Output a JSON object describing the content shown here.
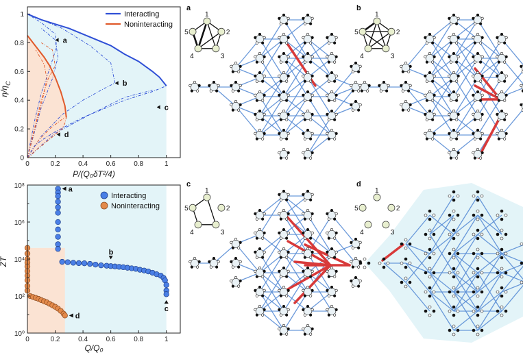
{
  "chart_data": [
    {
      "type": "line",
      "panel": "top-left",
      "xlabel": "P/(Q₀δT²/4)",
      "ylabel": "η/η",
      "ylabel_sub": "C",
      "xlim": [
        0,
        1.1
      ],
      "ylim": [
        0,
        1.05
      ],
      "xticks": [
        "0",
        "0.2",
        "0.4",
        "0.6",
        "0.8",
        "1"
      ],
      "yticks": [
        "0",
        "0.2",
        "0.4",
        "0.6",
        "0.8",
        "1"
      ],
      "legend_position": "top-right",
      "colors": {
        "interacting": "#2f4fd6",
        "noninteracting": "#e05a2b",
        "shade_interacting": "#e3f4f8",
        "shade_noninteracting": "#fbe3d3"
      },
      "series": [
        {
          "name": "Interacting",
          "lower": [
            [
              0,
              0
            ],
            [
              0.05,
              0.08
            ],
            [
              0.1,
              0.12
            ],
            [
              0.2,
              0.18
            ],
            [
              0.3,
              0.23
            ],
            [
              0.4,
              0.28
            ],
            [
              0.5,
              0.32
            ],
            [
              0.6,
              0.36
            ],
            [
              0.7,
              0.4
            ],
            [
              0.8,
              0.43
            ],
            [
              0.9,
              0.46
            ],
            [
              1.0,
              0.5
            ]
          ],
          "upper": [
            [
              0,
              1.0
            ],
            [
              0.1,
              0.96
            ],
            [
              0.2,
              0.93
            ],
            [
              0.3,
              0.9
            ],
            [
              0.4,
              0.86
            ],
            [
              0.5,
              0.82
            ],
            [
              0.6,
              0.78
            ],
            [
              0.7,
              0.72
            ],
            [
              0.8,
              0.67
            ],
            [
              0.9,
              0.6
            ],
            [
              0.95,
              0.56
            ],
            [
              1.0,
              0.5
            ]
          ]
        },
        {
          "name": "Noninteracting",
          "lower": [
            [
              0,
              0
            ],
            [
              0.03,
              0.02
            ],
            [
              0.06,
              0.05
            ],
            [
              0.1,
              0.08
            ],
            [
              0.15,
              0.12
            ],
            [
              0.2,
              0.16
            ],
            [
              0.25,
              0.2
            ],
            [
              0.27,
              0.24
            ],
            [
              0.28,
              0.28
            ]
          ],
          "upper": [
            [
              0,
              0.85
            ],
            [
              0.04,
              0.8
            ],
            [
              0.08,
              0.75
            ],
            [
              0.12,
              0.7
            ],
            [
              0.16,
              0.64
            ],
            [
              0.2,
              0.56
            ],
            [
              0.24,
              0.46
            ],
            [
              0.27,
              0.36
            ],
            [
              0.28,
              0.28
            ]
          ]
        }
      ],
      "annotations": [
        {
          "label": "a",
          "x": 0.21,
          "y": 0.8
        },
        {
          "label": "b",
          "x": 0.63,
          "y": 0.5
        },
        {
          "label": "c",
          "x": 1.0,
          "y": 0.38
        },
        {
          "label": "d",
          "x": 0.27,
          "y": 0.19
        }
      ]
    },
    {
      "type": "scatter",
      "panel": "bottom-left",
      "xlabel": "Q/Q₀",
      "ylabel": "ZT",
      "xscale": "linear",
      "yscale": "log",
      "xlim": [
        0,
        1.1
      ],
      "ylim_exp": [
        0,
        8
      ],
      "xticks": [
        "0",
        "0.2",
        "0.4",
        "0.6",
        "0.8",
        "1"
      ],
      "yticks": [
        "10⁰",
        "10²",
        "10⁴",
        "10⁶",
        "10⁸"
      ],
      "legend_position": "top-right",
      "colors": {
        "interacting": "#4a7fe6",
        "noninteracting": "#e38a4b"
      },
      "series": [
        {
          "name": "Interacting",
          "points": [
            [
              0.22,
              7.8
            ],
            [
              0.22,
              7.6
            ],
            [
              0.22,
              7.4
            ],
            [
              0.22,
              7.1
            ],
            [
              0.22,
              6.8
            ],
            [
              0.22,
              6.5
            ],
            [
              0.22,
              6.0
            ],
            [
              0.22,
              5.6
            ],
            [
              0.22,
              5.2
            ],
            [
              0.22,
              4.8
            ],
            [
              0.22,
              4.55
            ],
            [
              0.25,
              3.85
            ],
            [
              0.29,
              3.83
            ],
            [
              0.33,
              3.8
            ],
            [
              0.37,
              3.78
            ],
            [
              0.41,
              3.77
            ],
            [
              0.45,
              3.74
            ],
            [
              0.49,
              3.7
            ],
            [
              0.53,
              3.66
            ],
            [
              0.57,
              3.64
            ],
            [
              0.6,
              3.62
            ],
            [
              0.63,
              3.6
            ],
            [
              0.66,
              3.58
            ],
            [
              0.69,
              3.56
            ],
            [
              0.72,
              3.53
            ],
            [
              0.75,
              3.5
            ],
            [
              0.78,
              3.47
            ],
            [
              0.81,
              3.42
            ],
            [
              0.84,
              3.38
            ],
            [
              0.87,
              3.33
            ],
            [
              0.9,
              3.26
            ],
            [
              0.93,
              3.18
            ],
            [
              0.96,
              3.1
            ],
            [
              0.98,
              2.98
            ],
            [
              0.99,
              2.85
            ],
            [
              1.0,
              2.6
            ],
            [
              1.0,
              2.3
            ],
            [
              1.0,
              2.1
            ]
          ]
        },
        {
          "name": "Noninteracting",
          "points": [
            [
              0.0,
              4.6
            ],
            [
              0.0,
              4.3
            ],
            [
              0.0,
              4.0
            ],
            [
              0.0,
              3.8
            ],
            [
              0.0,
              3.6
            ],
            [
              0.0,
              3.35
            ],
            [
              0.0,
              3.1
            ],
            [
              0.0,
              2.85
            ],
            [
              0.0,
              2.55
            ],
            [
              0.0,
              2.3
            ],
            [
              0.02,
              2.0
            ],
            [
              0.04,
              1.95
            ],
            [
              0.06,
              1.9
            ],
            [
              0.08,
              1.85
            ],
            [
              0.1,
              1.78
            ],
            [
              0.12,
              1.72
            ],
            [
              0.14,
              1.66
            ],
            [
              0.16,
              1.58
            ],
            [
              0.18,
              1.5
            ],
            [
              0.2,
              1.42
            ],
            [
              0.22,
              1.32
            ],
            [
              0.24,
              1.2
            ],
            [
              0.26,
              1.05
            ],
            [
              0.27,
              0.95
            ]
          ]
        }
      ],
      "annotations": [
        {
          "label": "a",
          "x": 0.22,
          "y_exp": 7.8
        },
        {
          "label": "b",
          "x": 0.6,
          "y_exp": 3.8
        },
        {
          "label": "c",
          "x": 1.0,
          "y_exp": 2.0
        },
        {
          "label": "d",
          "x": 0.27,
          "y_exp": 0.95
        }
      ]
    }
  ],
  "networks": {
    "colors": {
      "edge": "#5b8fd6",
      "highlight": "#d83a3a",
      "node_shape": "#333333",
      "bg": "#e3f4f8",
      "legend_node": "#e8efcf"
    },
    "panels": [
      {
        "letter": "a",
        "pentagon_labels": [
          "1",
          "2",
          "3",
          "4",
          "5"
        ]
      },
      {
        "letter": "b",
        "pentagon_labels": [
          "1",
          "2",
          "3",
          "4",
          "5"
        ]
      },
      {
        "letter": "c",
        "pentagon_labels": [
          "1",
          "2",
          "3",
          "4",
          "5"
        ]
      },
      {
        "letter": "d",
        "pentagon_labels": [
          "1",
          "2",
          "3",
          "4",
          "5"
        ]
      }
    ]
  }
}
